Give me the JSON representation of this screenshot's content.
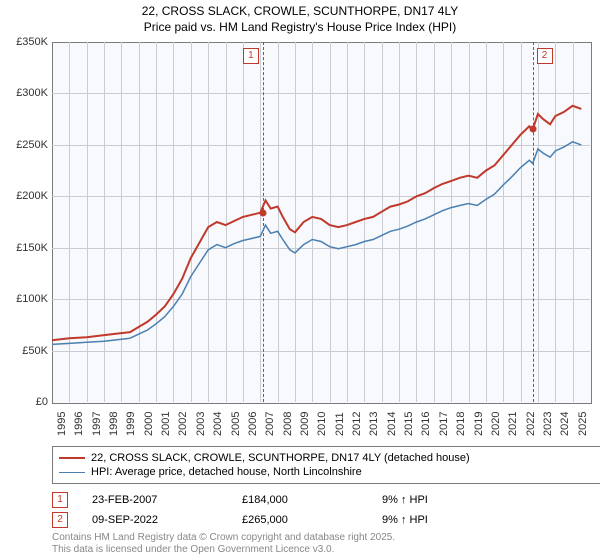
{
  "title": {
    "line1": "22, CROSS SLACK, CROWLE, SCUNTHORPE, DN17 4LY",
    "line2": "Price paid vs. HM Land Registry's House Price Index (HPI)"
  },
  "chart": {
    "type": "line",
    "background_color": "#f8f9fc",
    "grid_color": "#c9ccd5",
    "border_color": "#7b7b7b",
    "x_start": 1995,
    "x_end": 2026,
    "xtick_step": 1,
    "xtick_labels": [
      "1995",
      "1996",
      "1997",
      "1998",
      "1999",
      "2000",
      "2001",
      "2002",
      "2003",
      "2004",
      "2005",
      "2006",
      "2007",
      "2008",
      "2009",
      "2010",
      "2011",
      "2012",
      "2013",
      "2014",
      "2015",
      "2016",
      "2017",
      "2018",
      "2019",
      "2020",
      "2021",
      "2022",
      "2023",
      "2024",
      "2025"
    ],
    "ylim": [
      0,
      350000
    ],
    "ytick_step": 50000,
    "ytick_labels": [
      "£0",
      "£50K",
      "£100K",
      "£150K",
      "£200K",
      "£250K",
      "£300K",
      "£350K"
    ],
    "label_fontsize": 11,
    "series": [
      {
        "name": "22, CROSS SLACK, CROWLE, SCUNTHORPE, DN17 4LY (detached house)",
        "color": "#c0392b",
        "width": 2,
        "data": [
          [
            1995,
            60000
          ],
          [
            1996,
            62000
          ],
          [
            1997,
            63000
          ],
          [
            1998,
            65000
          ],
          [
            1998.5,
            66000
          ],
          [
            1999,
            67000
          ],
          [
            1999.5,
            68000
          ],
          [
            2000,
            73000
          ],
          [
            2000.5,
            78000
          ],
          [
            2001,
            85000
          ],
          [
            2001.5,
            93000
          ],
          [
            2002,
            105000
          ],
          [
            2002.5,
            120000
          ],
          [
            2003,
            140000
          ],
          [
            2003.5,
            155000
          ],
          [
            2004,
            170000
          ],
          [
            2004.5,
            175000
          ],
          [
            2005,
            172000
          ],
          [
            2005.5,
            176000
          ],
          [
            2006,
            180000
          ],
          [
            2006.5,
            182000
          ],
          [
            2007,
            184000
          ],
          [
            2007.3,
            196000
          ],
          [
            2007.6,
            188000
          ],
          [
            2008,
            190000
          ],
          [
            2008.3,
            180000
          ],
          [
            2008.7,
            168000
          ],
          [
            2009,
            165000
          ],
          [
            2009.5,
            175000
          ],
          [
            2010,
            180000
          ],
          [
            2010.5,
            178000
          ],
          [
            2011,
            172000
          ],
          [
            2011.5,
            170000
          ],
          [
            2012,
            172000
          ],
          [
            2012.5,
            175000
          ],
          [
            2013,
            178000
          ],
          [
            2013.5,
            180000
          ],
          [
            2014,
            185000
          ],
          [
            2014.5,
            190000
          ],
          [
            2015,
            192000
          ],
          [
            2015.5,
            195000
          ],
          [
            2016,
            200000
          ],
          [
            2016.5,
            203000
          ],
          [
            2017,
            208000
          ],
          [
            2017.5,
            212000
          ],
          [
            2018,
            215000
          ],
          [
            2018.5,
            218000
          ],
          [
            2019,
            220000
          ],
          [
            2019.5,
            218000
          ],
          [
            2020,
            225000
          ],
          [
            2020.5,
            230000
          ],
          [
            2021,
            240000
          ],
          [
            2021.5,
            250000
          ],
          [
            2022,
            260000
          ],
          [
            2022.5,
            268000
          ],
          [
            2022.7,
            265000
          ],
          [
            2023,
            280000
          ],
          [
            2023.3,
            275000
          ],
          [
            2023.7,
            270000
          ],
          [
            2024,
            278000
          ],
          [
            2024.5,
            282000
          ],
          [
            2025,
            288000
          ],
          [
            2025.5,
            285000
          ]
        ]
      },
      {
        "name": "HPI: Average price, detached house, North Lincolnshire",
        "color": "#4a7fb0",
        "width": 1.5,
        "data": [
          [
            1995,
            56000
          ],
          [
            1996,
            57000
          ],
          [
            1997,
            58000
          ],
          [
            1998,
            59000
          ],
          [
            1998.5,
            60000
          ],
          [
            1999,
            61000
          ],
          [
            1999.5,
            62000
          ],
          [
            2000,
            66000
          ],
          [
            2000.5,
            70000
          ],
          [
            2001,
            76000
          ],
          [
            2001.5,
            83000
          ],
          [
            2002,
            93000
          ],
          [
            2002.5,
            105000
          ],
          [
            2003,
            122000
          ],
          [
            2003.5,
            135000
          ],
          [
            2004,
            148000
          ],
          [
            2004.5,
            153000
          ],
          [
            2005,
            150000
          ],
          [
            2005.5,
            154000
          ],
          [
            2006,
            157000
          ],
          [
            2006.5,
            159000
          ],
          [
            2007,
            161000
          ],
          [
            2007.3,
            172000
          ],
          [
            2007.6,
            164000
          ],
          [
            2008,
            166000
          ],
          [
            2008.3,
            158000
          ],
          [
            2008.7,
            148000
          ],
          [
            2009,
            145000
          ],
          [
            2009.5,
            153000
          ],
          [
            2010,
            158000
          ],
          [
            2010.5,
            156000
          ],
          [
            2011,
            151000
          ],
          [
            2011.5,
            149000
          ],
          [
            2012,
            151000
          ],
          [
            2012.5,
            153000
          ],
          [
            2013,
            156000
          ],
          [
            2013.5,
            158000
          ],
          [
            2014,
            162000
          ],
          [
            2014.5,
            166000
          ],
          [
            2015,
            168000
          ],
          [
            2015.5,
            171000
          ],
          [
            2016,
            175000
          ],
          [
            2016.5,
            178000
          ],
          [
            2017,
            182000
          ],
          [
            2017.5,
            186000
          ],
          [
            2018,
            189000
          ],
          [
            2018.5,
            191000
          ],
          [
            2019,
            193000
          ],
          [
            2019.5,
            191000
          ],
          [
            2020,
            197000
          ],
          [
            2020.5,
            202000
          ],
          [
            2021,
            211000
          ],
          [
            2021.5,
            219000
          ],
          [
            2022,
            228000
          ],
          [
            2022.5,
            235000
          ],
          [
            2022.7,
            232000
          ],
          [
            2023,
            246000
          ],
          [
            2023.3,
            242000
          ],
          [
            2023.7,
            238000
          ],
          [
            2024,
            244000
          ],
          [
            2024.5,
            248000
          ],
          [
            2025,
            253000
          ],
          [
            2025.5,
            250000
          ]
        ]
      }
    ],
    "markers": [
      {
        "index": "1",
        "x": 2007.15,
        "y": 184000,
        "box_side": "left"
      },
      {
        "index": "2",
        "x": 2022.69,
        "y": 265000,
        "box_side": "right"
      }
    ]
  },
  "legend": {
    "items": [
      {
        "color": "#c0392b",
        "width": 2,
        "label": "22, CROSS SLACK, CROWLE, SCUNTHORPE, DN17 4LY (detached house)"
      },
      {
        "color": "#4a7fb0",
        "width": 1.5,
        "label": "HPI: Average price, detached house, North Lincolnshire"
      }
    ]
  },
  "sales": [
    {
      "index": "1",
      "date": "23-FEB-2007",
      "price": "£184,000",
      "hpi": "9% ↑ HPI"
    },
    {
      "index": "2",
      "date": "09-SEP-2022",
      "price": "£265,000",
      "hpi": "9% ↑ HPI"
    }
  ],
  "footer": {
    "line1": "Contains HM Land Registry data © Crown copyright and database right 2025.",
    "line2": "This data is licensed under the Open Government Licence v3.0."
  }
}
